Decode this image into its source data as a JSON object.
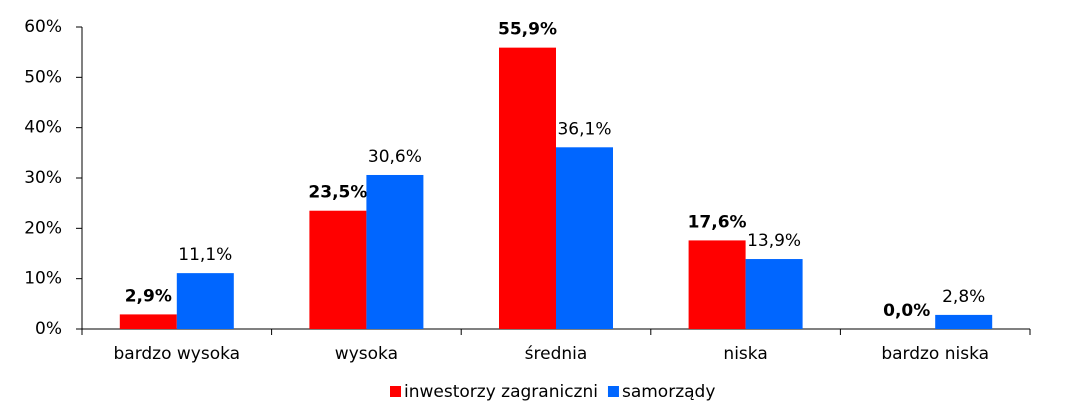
{
  "chart_data": {
    "type": "bar",
    "categories": [
      "bardzo wysoka",
      "wysoka",
      "średnia",
      "niska",
      "bardzo niska"
    ],
    "series": [
      {
        "name": "inwestorzy zagraniczni",
        "color": "#ff0000",
        "values": [
          2.9,
          23.5,
          55.9,
          17.6,
          0.0
        ],
        "value_labels": [
          "2,9%",
          "23,5%",
          "55,9%",
          "17,6%",
          "0,0%"
        ]
      },
      {
        "name": "samorządy",
        "color": "#0066ff",
        "values": [
          11.1,
          30.6,
          36.1,
          13.9,
          2.8
        ],
        "value_labels": [
          "11,1%",
          "30,6%",
          "36,1%",
          "13,9%",
          "2,8%"
        ]
      }
    ],
    "ylim": [
      0,
      60
    ],
    "yticks": [
      {
        "value": 0,
        "label": "0%"
      },
      {
        "value": 10,
        "label": "10%"
      },
      {
        "value": 20,
        "label": "20%"
      },
      {
        "value": 30,
        "label": "30%"
      },
      {
        "value": 40,
        "label": "40%"
      },
      {
        "value": 50,
        "label": "50%"
      },
      {
        "value": 60,
        "label": "60%"
      }
    ],
    "legend": "bottom"
  }
}
